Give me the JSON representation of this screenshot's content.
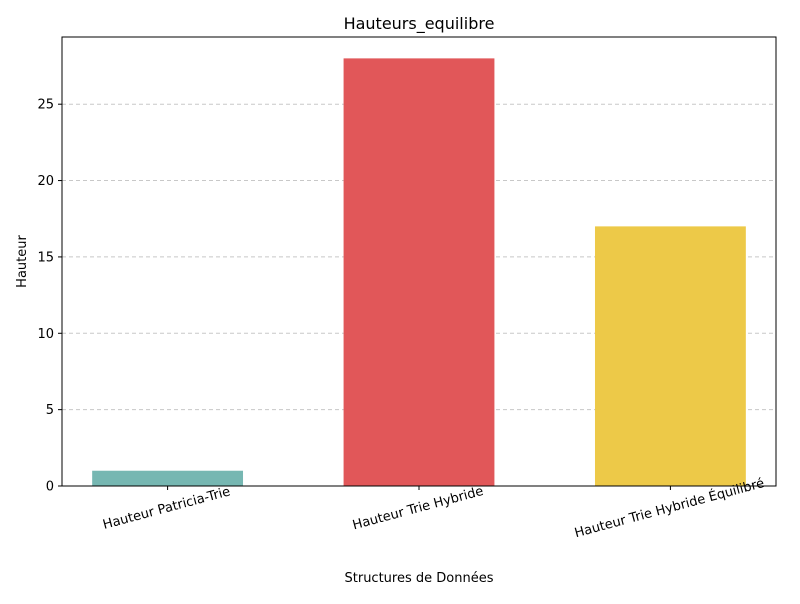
{
  "chart_data": {
    "type": "bar",
    "title": "Hauteurs_equilibre",
    "xlabel": "Structures de Données",
    "ylabel": "Hauteur",
    "categories": [
      "Hauteur Patricia-Trie",
      "Hauteur Trie Hybride",
      "Hauteur Trie Hybride Équilibré"
    ],
    "values": [
      1,
      28,
      17
    ],
    "colors": [
      "#76b7b2",
      "#e15759",
      "#edc948"
    ],
    "ylim": [
      0,
      29.4
    ],
    "yticks": [
      0,
      5,
      10,
      15,
      20,
      25
    ],
    "grid": "y-dashed",
    "legend": "none"
  }
}
